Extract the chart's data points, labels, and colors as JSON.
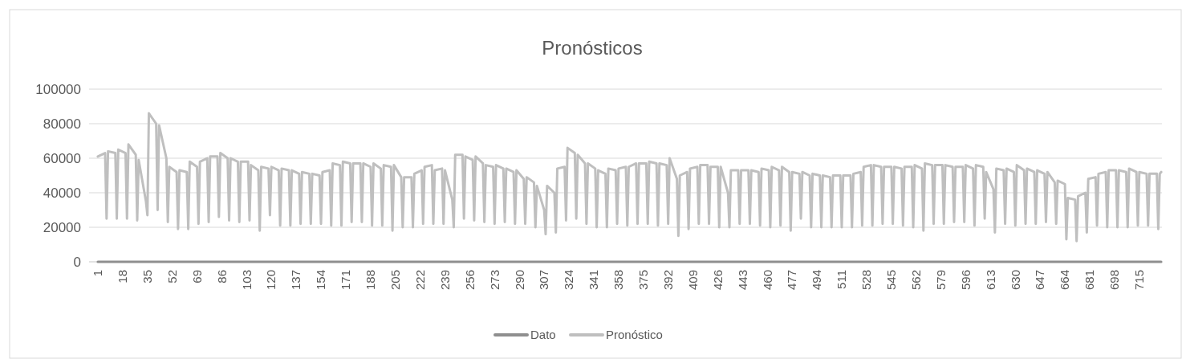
{
  "chart_data": {
    "type": "line",
    "title": "Pronósticos",
    "xlim": [
      0.5,
      730.5
    ],
    "xticks": [
      1,
      18,
      35,
      52,
      69,
      86,
      103,
      120,
      137,
      154,
      171,
      188,
      205,
      222,
      239,
      256,
      273,
      290,
      307,
      324,
      341,
      358,
      375,
      392,
      409,
      426,
      443,
      460,
      477,
      494,
      511,
      528,
      545,
      562,
      579,
      596,
      613,
      630,
      647,
      664,
      681,
      698,
      715
    ],
    "ylim": [
      0,
      100000
    ],
    "yticks": [
      0,
      20000,
      40000,
      60000,
      80000,
      100000
    ],
    "grid": "y",
    "legend": "bottom",
    "line_style": "solid",
    "series": [
      {
        "name": "Dato",
        "color": "#8f8f8f",
        "x": [
          1,
          730
        ],
        "values": [
          0,
          0
        ]
      },
      {
        "name": "Pronóstico",
        "color": "#bfbfbf",
        "x": [
          1,
          6,
          7,
          8,
          13,
          14,
          15,
          20,
          21,
          22,
          27,
          28,
          29,
          34,
          35,
          36,
          41,
          42,
          43,
          48,
          49,
          50,
          55,
          56,
          57,
          62,
          63,
          64,
          69,
          70,
          71,
          76,
          77,
          78,
          83,
          84,
          85,
          90,
          91,
          92,
          97,
          98,
          99,
          104,
          105,
          106,
          111,
          112,
          113,
          118,
          119,
          120,
          125,
          126,
          127,
          132,
          133,
          134,
          139,
          140,
          141,
          146,
          147,
          148,
          153,
          154,
          155,
          160,
          161,
          162,
          167,
          168,
          169,
          174,
          175,
          176,
          181,
          182,
          183,
          188,
          189,
          190,
          195,
          196,
          197,
          202,
          203,
          204,
          209,
          210,
          211,
          216,
          217,
          218,
          223,
          224,
          225,
          230,
          231,
          232,
          237,
          238,
          239,
          244,
          245,
          246,
          251,
          252,
          253,
          258,
          259,
          260,
          265,
          266,
          267,
          272,
          273,
          274,
          279,
          280,
          281,
          286,
          287,
          288,
          293,
          294,
          295,
          300,
          301,
          302,
          307,
          308,
          309,
          314,
          315,
          316,
          321,
          322,
          323,
          328,
          329,
          330,
          335,
          336,
          337,
          342,
          343,
          344,
          349,
          350,
          351,
          356,
          357,
          358,
          363,
          364,
          365,
          370,
          371,
          372,
          377,
          378,
          379,
          384,
          385,
          386,
          391,
          392,
          393,
          398,
          399,
          400,
          405,
          406,
          407,
          412,
          413,
          414,
          419,
          420,
          421,
          426,
          427,
          428,
          433,
          434,
          435,
          440,
          441,
          442,
          447,
          448,
          449,
          454,
          455,
          456,
          461,
          462,
          463,
          468,
          469,
          470,
          475,
          476,
          477,
          482,
          483,
          484,
          489,
          490,
          491,
          496,
          497,
          498,
          503,
          504,
          505,
          510,
          511,
          512,
          517,
          518,
          519,
          524,
          525,
          526,
          531,
          532,
          533,
          538,
          539,
          540,
          545,
          546,
          547,
          552,
          553,
          554,
          559,
          560,
          561,
          566,
          567,
          568,
          573,
          574,
          575,
          580,
          581,
          582,
          587,
          588,
          589,
          594,
          595,
          596,
          601,
          602,
          603,
          608,
          609,
          610,
          615,
          616,
          617,
          622,
          623,
          624,
          629,
          630,
          631,
          636,
          637,
          638,
          643,
          644,
          645,
          650,
          651,
          652,
          657,
          658,
          659,
          664,
          665,
          666,
          671,
          672,
          673,
          678,
          679,
          680,
          685,
          686,
          687,
          692,
          693,
          694,
          699,
          700,
          701,
          706,
          707,
          708,
          713,
          714,
          715,
          720,
          721,
          722,
          727,
          728,
          729,
          730
        ],
        "values": [
          61000,
          63000,
          25000,
          64000,
          63000,
          25000,
          65000,
          63000,
          25000,
          68000,
          62000,
          24000,
          59000,
          35000,
          27000,
          86000,
          80000,
          30000,
          79000,
          60000,
          23000,
          55000,
          52000,
          19000,
          53000,
          52000,
          19000,
          58000,
          55000,
          22000,
          58000,
          60000,
          23000,
          61000,
          61000,
          26000,
          63000,
          60000,
          24000,
          60000,
          58000,
          23000,
          58000,
          58000,
          24000,
          56000,
          53000,
          18000,
          55000,
          54000,
          27000,
          55000,
          53000,
          21000,
          54000,
          53000,
          21000,
          53000,
          51000,
          22000,
          52000,
          51000,
          22000,
          51000,
          50000,
          22000,
          52000,
          53000,
          21000,
          57000,
          56000,
          21000,
          58000,
          57000,
          23000,
          57000,
          57000,
          23000,
          57000,
          55000,
          21000,
          57000,
          54000,
          21000,
          56000,
          55000,
          18000,
          56000,
          49000,
          20000,
          49000,
          49000,
          20000,
          51000,
          53000,
          22000,
          55000,
          56000,
          22000,
          53000,
          54000,
          22000,
          53000,
          36000,
          20000,
          62000,
          62000,
          25000,
          61000,
          59000,
          24000,
          61000,
          57000,
          23000,
          56000,
          55000,
          22000,
          56000,
          54000,
          23000,
          54000,
          52000,
          22000,
          53000,
          48000,
          22000,
          49000,
          46000,
          20000,
          44000,
          30000,
          16000,
          44000,
          40000,
          17000,
          54000,
          55000,
          24000,
          66000,
          63000,
          25000,
          62000,
          57000,
          22000,
          57000,
          54000,
          20000,
          53000,
          51000,
          20000,
          54000,
          53000,
          22000,
          54000,
          55000,
          21000,
          55000,
          57000,
          22000,
          57000,
          57000,
          22000,
          58000,
          57000,
          21000,
          57000,
          56000,
          22000,
          60000,
          48000,
          15000,
          50000,
          52000,
          19000,
          54000,
          55000,
          22000,
          56000,
          56000,
          22000,
          55000,
          55000,
          20000,
          55000,
          40000,
          20000,
          53000,
          53000,
          22000,
          53000,
          53000,
          22000,
          53000,
          52000,
          21000,
          54000,
          53000,
          20000,
          55000,
          53000,
          21000,
          55000,
          52000,
          18000,
          52000,
          51000,
          25000,
          52000,
          50000,
          20000,
          51000,
          50000,
          20000,
          50000,
          49000,
          20000,
          50000,
          50000,
          20000,
          50000,
          50000,
          20000,
          51000,
          52000,
          21000,
          55000,
          56000,
          21000,
          56000,
          55000,
          22000,
          55000,
          55000,
          22000,
          55000,
          54000,
          21000,
          55000,
          55000,
          20000,
          56000,
          54000,
          18000,
          57000,
          56000,
          22000,
          56000,
          56000,
          22000,
          56000,
          55000,
          23000,
          55000,
          55000,
          23000,
          56000,
          54000,
          21000,
          56000,
          55000,
          25000,
          52000,
          42000,
          17000,
          54000,
          53000,
          22000,
          54000,
          52000,
          21000,
          56000,
          53000,
          22000,
          54000,
          52000,
          22000,
          53000,
          51000,
          23000,
          52000,
          46000,
          22000,
          47000,
          45000,
          13000,
          37000,
          36000,
          12000,
          38000,
          40000,
          17000,
          48000,
          49000,
          21000,
          51000,
          52000,
          20000,
          53000,
          53000,
          20000,
          53000,
          52000,
          20000,
          54000,
          52000,
          21000,
          52000,
          51000,
          21000,
          51000,
          51000,
          19000,
          51000,
          52000
        ]
      }
    ]
  }
}
